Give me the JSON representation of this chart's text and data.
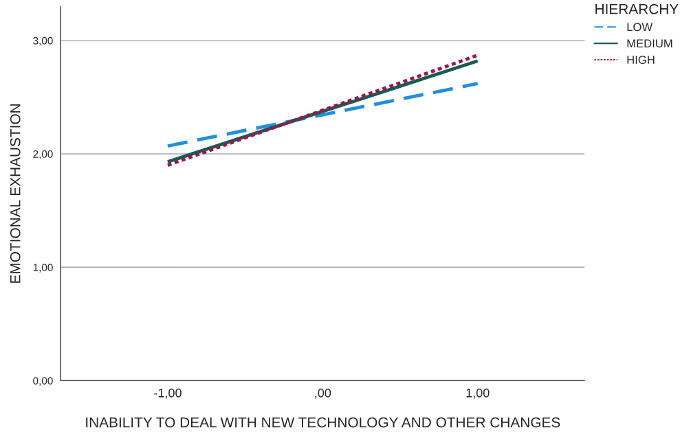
{
  "chart_data": {
    "type": "line",
    "xlabel": "INABILITY TO DEAL WITH NEW TECHNOLOGY AND OTHER CHANGES",
    "ylabel": "EMOTIONAL EXHAUSTION",
    "legend_title": "HIERARCHY",
    "x": [
      -1,
      1
    ],
    "series": [
      {
        "name": "LOW",
        "color": "#1f8fe0",
        "line_style": "dashed",
        "values": [
          2.07,
          2.62
        ]
      },
      {
        "name": "MEDIUM",
        "color": "#1a5a55",
        "line_style": "solid",
        "values": [
          1.93,
          2.82
        ]
      },
      {
        "name": "HIGH",
        "color": "#a0144c",
        "line_style": "dotted",
        "values": [
          1.9,
          2.87
        ]
      }
    ],
    "xlim": [
      -1.69,
      1.69
    ],
    "xticks": [
      {
        "value": -1,
        "label": "-1,00"
      },
      {
        "value": 0,
        "label": ",00"
      },
      {
        "value": 1,
        "label": "1,00"
      }
    ],
    "ylim": [
      0,
      3.3
    ],
    "yticks": [
      {
        "value": 0,
        "label": "0,00"
      },
      {
        "value": 1,
        "label": "1,00"
      },
      {
        "value": 2,
        "label": "2,00"
      },
      {
        "value": 3,
        "label": "3,00"
      }
    ],
    "grid": "y",
    "legend": "top right"
  }
}
